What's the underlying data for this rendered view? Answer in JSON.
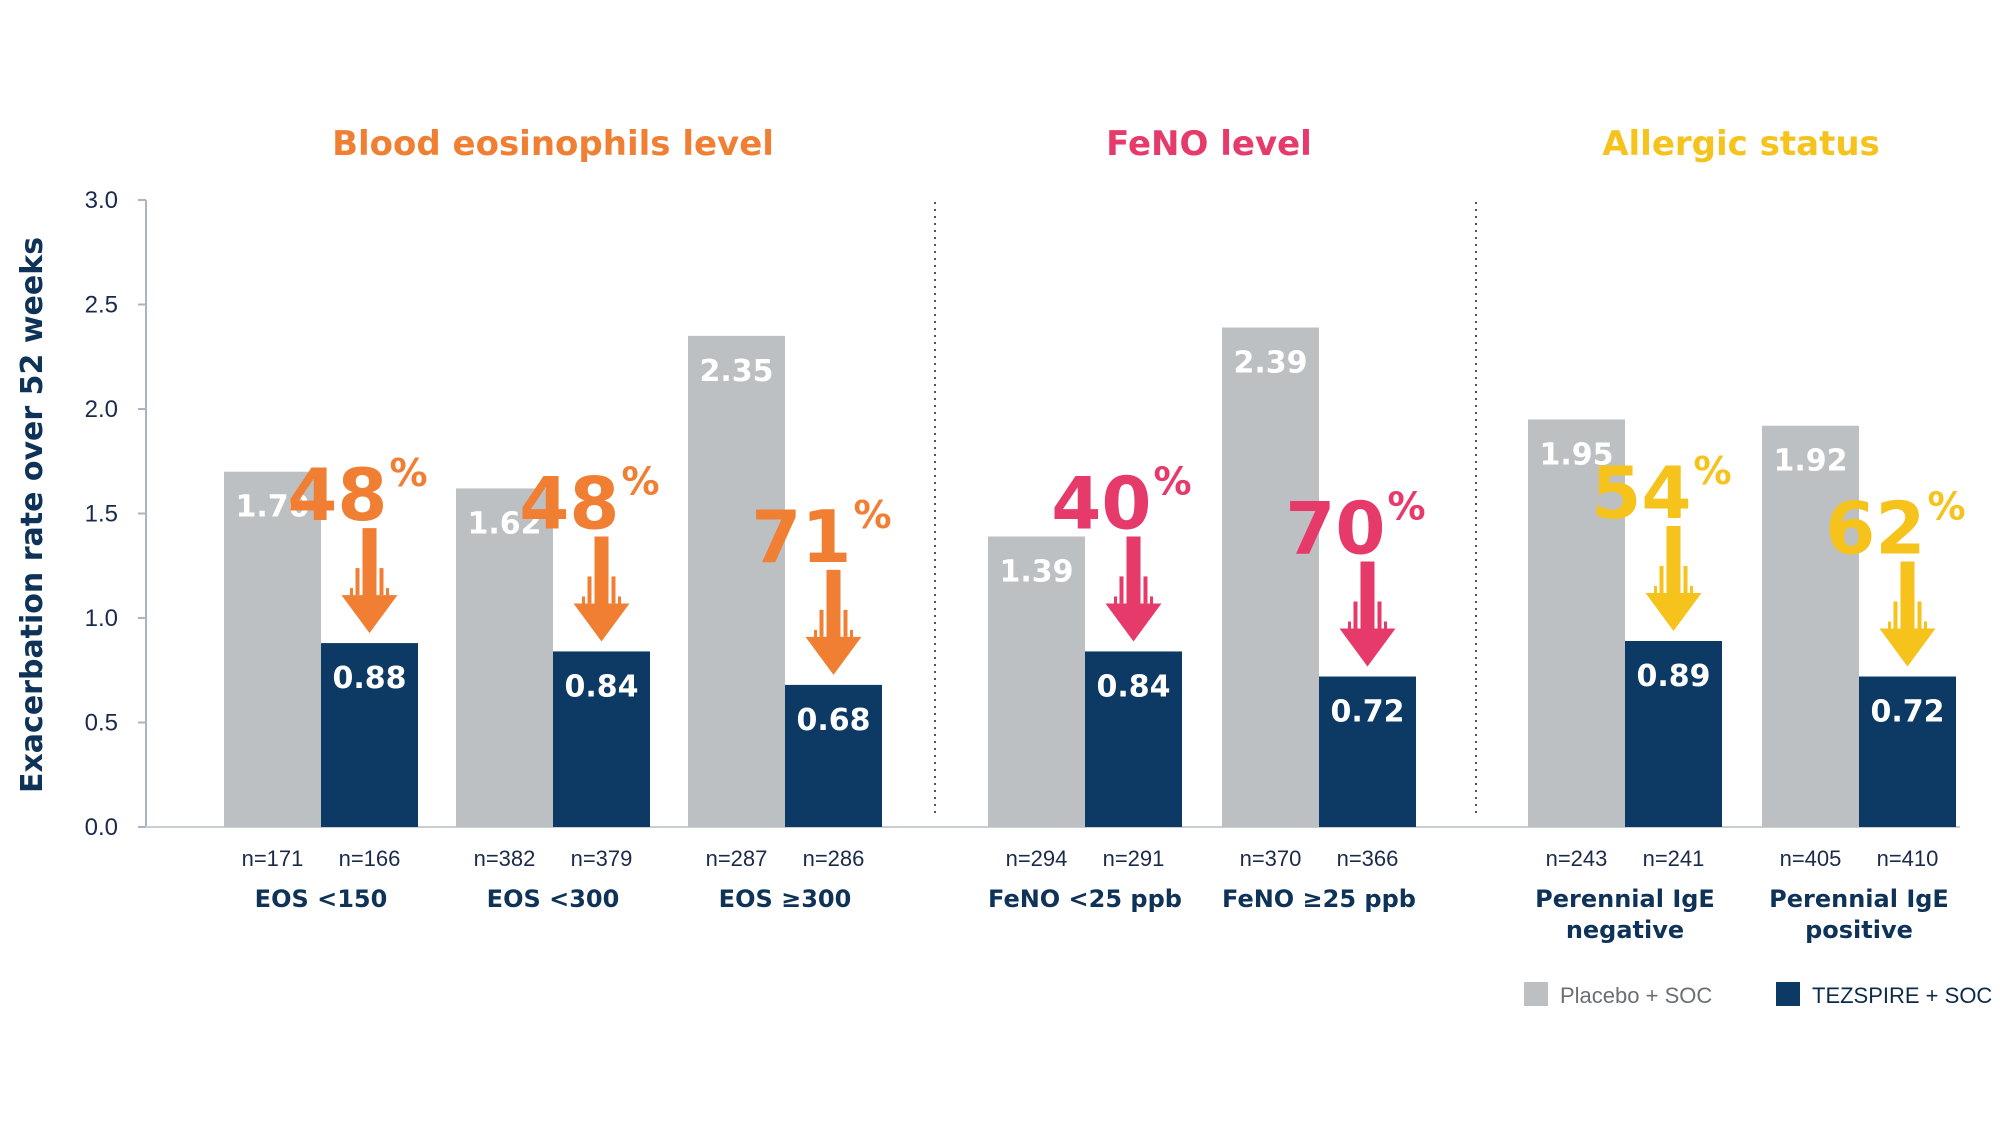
{
  "chart_data": {
    "type": "bar",
    "ylabel": "Exacerbation rate over 52 weeks",
    "ylim": [
      0,
      3.0
    ],
    "yticks": [
      "3.0",
      "2.5",
      "2.0",
      "1.5",
      "1.0",
      "0.5",
      "0.0"
    ],
    "series": [
      {
        "name": "Placebo + SOC",
        "color": "#bcc0c2"
      },
      {
        "name": "TEZSPIRE + SOC",
        "color": "#0c3a64"
      }
    ],
    "groups": [
      {
        "title": "Blood eosinophils level",
        "color": "#f07f34",
        "categories": [
          {
            "label": [
              "EOS <150"
            ],
            "placebo": 1.7,
            "placebo_label": "1.70",
            "tez": 0.88,
            "tez_label": "0.88",
            "n_placebo": "n=171",
            "n_tez": "n=166",
            "reduction": "48",
            "pct_sign": "%"
          },
          {
            "label": [
              "EOS <300"
            ],
            "placebo": 1.62,
            "placebo_label": "1.62",
            "tez": 0.84,
            "tez_label": "0.84",
            "n_placebo": "n=382",
            "n_tez": "n=379",
            "reduction": "48",
            "pct_sign": "%"
          },
          {
            "label": [
              "EOS ≥300"
            ],
            "placebo": 2.35,
            "placebo_label": "2.35",
            "tez": 0.68,
            "tez_label": "0.68",
            "n_placebo": "n=287",
            "n_tez": "n=286",
            "reduction": "71",
            "pct_sign": "%"
          }
        ]
      },
      {
        "title": "FeNO level",
        "color": "#e53a6a",
        "categories": [
          {
            "label": [
              "FeNO <25 ppb"
            ],
            "placebo": 1.39,
            "placebo_label": "1.39",
            "tez": 0.84,
            "tez_label": "0.84",
            "n_placebo": "n=294",
            "n_tez": "n=291",
            "reduction": "40",
            "pct_sign": "%"
          },
          {
            "label": [
              "FeNO ≥25 ppb"
            ],
            "placebo": 2.39,
            "placebo_label": "2.39",
            "tez": 0.72,
            "tez_label": "0.72",
            "n_placebo": "n=370",
            "n_tez": "n=366",
            "reduction": "70",
            "pct_sign": "%"
          }
        ]
      },
      {
        "title": "Allergic status",
        "color": "#f6c21c",
        "categories": [
          {
            "label": [
              "Perennial IgE",
              "negative"
            ],
            "placebo": 1.95,
            "placebo_label": "1.95",
            "tez": 0.89,
            "tez_label": "0.89",
            "n_placebo": "n=243",
            "n_tez": "n=241",
            "reduction": "54",
            "pct_sign": "%"
          },
          {
            "label": [
              "Perennial IgE",
              "positive"
            ],
            "placebo": 1.92,
            "placebo_label": "1.92",
            "tez": 0.72,
            "tez_label": "0.72",
            "n_placebo": "n=405",
            "n_tez": "n=410",
            "reduction": "62",
            "pct_sign": "%"
          }
        ]
      }
    ],
    "legend_position": "bottom-right",
    "grid": false
  }
}
